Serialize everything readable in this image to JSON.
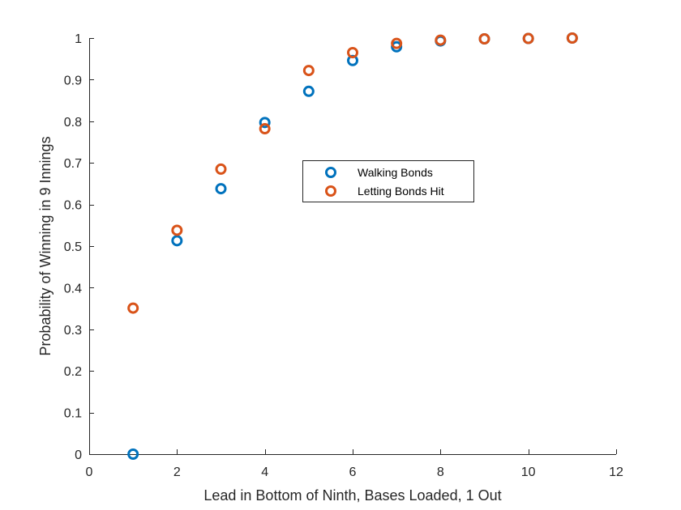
{
  "chart_data": {
    "type": "scatter",
    "title": "",
    "xlabel": "Lead in Bottom of Ninth, Bases Loaded, 1 Out",
    "ylabel": "Probability of Winning in 9 Innings",
    "xlim": [
      0,
      12
    ],
    "ylim": [
      0,
      1
    ],
    "xticks": [
      0,
      2,
      4,
      6,
      8,
      10,
      12
    ],
    "yticks": [
      0,
      0.1,
      0.2,
      0.3,
      0.4,
      0.5,
      0.6,
      0.7,
      0.8,
      0.9,
      1
    ],
    "xtick_labels": [
      "0",
      "2",
      "4",
      "6",
      "8",
      "10",
      "12"
    ],
    "ytick_labels": [
      "0",
      "0.1",
      "0.2",
      "0.3",
      "0.4",
      "0.5",
      "0.6",
      "0.7",
      "0.8",
      "0.9",
      "1"
    ],
    "grid": false,
    "legend_position": "center",
    "marker": "open-circle",
    "series": [
      {
        "name": "Walking Bonds",
        "color": "#0072BD",
        "x": [
          1,
          2,
          3,
          4,
          5,
          6,
          7,
          8,
          9,
          10,
          11
        ],
        "y": [
          0.0,
          0.513,
          0.638,
          0.797,
          0.872,
          0.946,
          0.979,
          0.993,
          0.998,
          0.999,
          1.0
        ]
      },
      {
        "name": "Letting Bonds Hit",
        "color": "#D95319",
        "x": [
          1,
          2,
          3,
          4,
          5,
          6,
          7,
          8,
          9,
          10,
          11
        ],
        "y": [
          0.351,
          0.538,
          0.685,
          0.782,
          0.922,
          0.965,
          0.987,
          0.995,
          0.998,
          0.999,
          1.0
        ]
      }
    ]
  }
}
